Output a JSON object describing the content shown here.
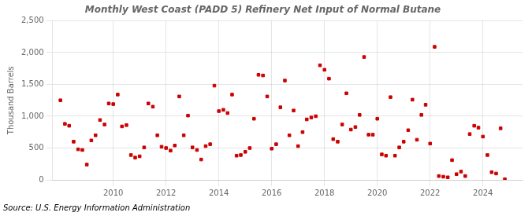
{
  "chart_data": {
    "type": "scatter",
    "title": "Monthly West Coast (PADD 5) Refinery Net Input of Normal Butane",
    "y_label": "Thousand Barrels",
    "source": "Source: U.S. Energy Information Administration",
    "color": "#cc0000",
    "marker": "square",
    "grid": true,
    "xlim": [
      2007.7,
      2025.5
    ],
    "xticks": [
      2010,
      2012,
      2014,
      2016,
      2018,
      2020,
      2022,
      2024
    ],
    "ylim": [
      0,
      2500
    ],
    "yticks": [
      0,
      500,
      {
        "value": 1000,
        "label": "1,000"
      },
      {
        "value": 1500,
        "label": "1,500"
      },
      {
        "value": 2000,
        "label": "2,000"
      },
      {
        "value": 2500,
        "label": "2,500"
      }
    ],
    "x": [
      2008.0,
      2008.17,
      2008.33,
      2008.5,
      2008.67,
      2008.83,
      2009.0,
      2009.17,
      2009.33,
      2009.5,
      2009.67,
      2009.83,
      2010.0,
      2010.17,
      2010.33,
      2010.5,
      2010.67,
      2010.83,
      2011.0,
      2011.17,
      2011.33,
      2011.5,
      2011.67,
      2011.83,
      2012.0,
      2012.17,
      2012.33,
      2012.5,
      2012.67,
      2012.83,
      2013.0,
      2013.17,
      2013.33,
      2013.5,
      2013.67,
      2013.83,
      2014.0,
      2014.17,
      2014.33,
      2014.5,
      2014.67,
      2014.83,
      2015.0,
      2015.17,
      2015.33,
      2015.5,
      2015.67,
      2015.83,
      2016.0,
      2016.17,
      2016.33,
      2016.5,
      2016.67,
      2016.83,
      2017.0,
      2017.17,
      2017.33,
      2017.5,
      2017.67,
      2017.83,
      2018.0,
      2018.17,
      2018.33,
      2018.5,
      2018.67,
      2018.83,
      2019.0,
      2019.17,
      2019.33,
      2019.5,
      2019.67,
      2019.83,
      2020.0,
      2020.17,
      2020.33,
      2020.5,
      2020.67,
      2020.83,
      2021.0,
      2021.17,
      2021.33,
      2021.5,
      2021.67,
      2021.83,
      2022.0,
      2022.17,
      2022.33,
      2022.5,
      2022.67,
      2022.83,
      2023.0,
      2023.17,
      2023.33,
      2023.5,
      2023.67,
      2023.83,
      2024.0,
      2024.17,
      2024.33,
      2024.5,
      2024.67,
      2024.83
    ],
    "values": [
      1250,
      880,
      850,
      600,
      480,
      470,
      240,
      620,
      700,
      940,
      870,
      1200,
      1190,
      1340,
      840,
      860,
      390,
      350,
      370,
      510,
      1200,
      1150,
      700,
      520,
      500,
      460,
      540,
      1310,
      700,
      1010,
      510,
      470,
      320,
      530,
      560,
      1480,
      1080,
      1100,
      1050,
      1340,
      380,
      390,
      440,
      500,
      960,
      1650,
      1640,
      1310,
      490,
      560,
      1140,
      1560,
      700,
      1090,
      530,
      750,
      950,
      980,
      1000,
      1800,
      1730,
      1590,
      640,
      600,
      870,
      1360,
      790,
      830,
      1020,
      1930,
      710,
      710,
      960,
      400,
      380,
      1300,
      380,
      510,
      600,
      780,
      1260,
      630,
      1020,
      1180,
      570,
      2090,
      60,
      50,
      40,
      310,
      90,
      130,
      60,
      720,
      850,
      820,
      680,
      390,
      120,
      100,
      810,
      10
    ]
  }
}
